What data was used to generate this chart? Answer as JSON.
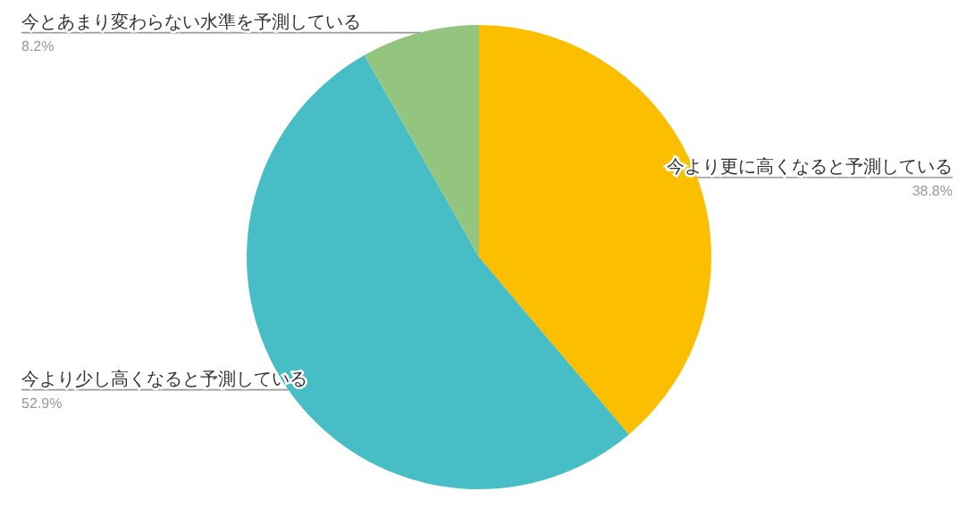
{
  "chart_data": {
    "type": "pie",
    "categories": [
      "今より更に高くなると予測している",
      "今より少し高くなると予測している",
      "今とあまり変わらない水準を予測している"
    ],
    "values": [
      38.8,
      52.9,
      8.2
    ],
    "value_labels": [
      "38.8%",
      "52.9%",
      "8.2%"
    ],
    "colors": [
      "#fbbf00",
      "#47bdc5",
      "#93c57e"
    ]
  }
}
